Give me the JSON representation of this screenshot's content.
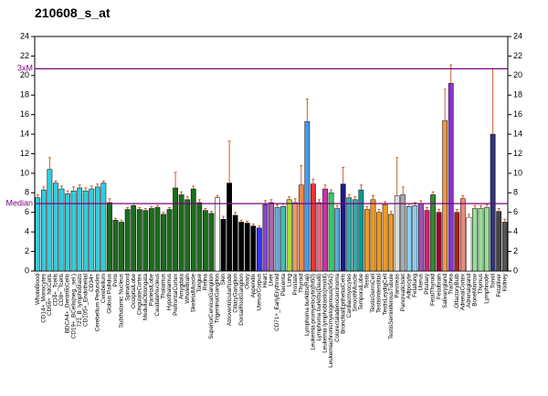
{
  "chart_data": {
    "type": "bar",
    "title": "210608_s_at",
    "categories": [
      "WholeBlood",
      "CD14+_Monocytes",
      "CD56+_NKCells",
      "CD4+_Tcells",
      "CD8+_Tcells",
      "BDCA4+_DentriticCells",
      "CD19+_BCells(neg._sel.)",
      "721_B_lymphoblasts",
      "CD105+_Endothelial",
      "CD34+",
      "Cerebellum Peduncles",
      "Cerebellum",
      "Globus Pallidus",
      "Pons",
      "Subthalamic Nucleus",
      "Spinalcord",
      "OccipitalLobe",
      "CingulateCortex",
      "MedullaOblongata",
      "ParietalLobe",
      "CaudateNucleus",
      "Thalamus",
      "Hypothalamus",
      "PrefrontalCortex",
      "Amygdala",
      "WholeBrain",
      "SkeletalMuscle",
      "Tongue",
      "Retina",
      "SuperiorCervicalGanglion",
      "TrigeminalGanglion",
      "Skin",
      "AtrioventricularNode",
      "CiliaryGanglion",
      "DorsalRootGanglion",
      "Ovary",
      "Appendix",
      "Uterus/Corpus",
      "Heart",
      "Liver",
      "CD71+_EarlyErythroid",
      "Placenta",
      "Lung",
      "Prostate",
      "Thyroid",
      "Lymphoma burkitts(Raji)",
      "Leukemia promyelocytic(hl60)",
      "Lymphoma burkitts(Daudi)",
      "Leukemia lymphoblastic(molt4)",
      "Leukemiachronicmyelogenous(k562)",
      "Colorectaladenocarcinoma",
      "BronchialEpithelialCells",
      "Cardiacmyocytes",
      "SmoothMuscle",
      "TemporalLobe",
      "Testis",
      "TestisGermCell",
      "TestisInterstitial",
      "TestisLeydigCell",
      "TestisSeminiferousTubule",
      "Pancreas",
      "PancreaticIslet",
      "Adipocyte",
      "Fetallung",
      "Uterus",
      "Pituitary",
      "FetalThyroid",
      "Fetalbrain",
      "Salivarygland",
      "Trachea",
      "OlfactoryBulb",
      "AdrenalCortex",
      "Adrenalgland",
      "BoneMarrow",
      "Thymus",
      "Lymphnode",
      "Tonsil",
      "Fetalliver",
      "Kidney"
    ],
    "values": [
      7.5,
      8.3,
      10.4,
      9.0,
      8.4,
      7.9,
      8.2,
      8.5,
      8.2,
      8.4,
      8.6,
      9.0,
      7.0,
      5.2,
      5.0,
      6.3,
      6.7,
      6.3,
      6.2,
      6.4,
      6.5,
      5.8,
      6.3,
      8.5,
      7.8,
      7.3,
      8.4,
      7.0,
      6.2,
      5.9,
      7.5,
      5.3,
      9.0,
      5.7,
      5.0,
      4.9,
      4.6,
      4.4,
      6.8,
      7.0,
      6.5,
      6.6,
      7.3,
      7.0,
      8.8,
      15.3,
      8.9,
      7.0,
      8.4,
      8.0,
      6.4,
      8.9,
      7.5,
      7.3,
      8.3,
      6.3,
      7.3,
      6.0,
      6.8,
      5.8,
      7.7,
      7.8,
      6.6,
      6.7,
      6.9,
      6.2,
      7.8,
      6.0,
      15.4,
      19.2,
      6.0,
      7.4,
      5.5,
      6.4,
      6.4,
      6.5,
      14.0,
      6.1,
      5.0
    ],
    "errors": [
      0.3,
      0.3,
      1.2,
      0.2,
      0.3,
      0.3,
      0.4,
      0.3,
      0.3,
      0.3,
      0.3,
      0.2,
      0.4,
      0.2,
      0.2,
      0.2,
      0.2,
      0.2,
      0.2,
      0.2,
      0.2,
      0.2,
      0.2,
      1.6,
      0.3,
      0.3,
      0.3,
      0.3,
      0.2,
      0.2,
      0.2,
      0.3,
      4.3,
      0.3,
      0.2,
      0.2,
      0.2,
      0.2,
      0.4,
      0.3,
      0.3,
      0.3,
      0.3,
      0.4,
      2.0,
      2.3,
      0.5,
      0.3,
      0.4,
      0.3,
      0.3,
      1.7,
      0.3,
      0.3,
      0.5,
      0.3,
      0.4,
      0.3,
      0.3,
      0.3,
      3.9,
      0.8,
      0.3,
      0.3,
      0.3,
      0.3,
      0.3,
      0.3,
      3.2,
      1.9,
      0.3,
      0.3,
      0.3,
      0.3,
      0.3,
      0.3,
      6.7,
      0.3,
      0.3
    ],
    "colors": [
      "#33ccdd",
      "#33ccdd",
      "#33ccdd",
      "#33ccdd",
      "#33ccdd",
      "#33ccdd",
      "#33ccdd",
      "#33ccdd",
      "#33ccdd",
      "#33ccdd",
      "#33ccdd",
      "#33ccdd",
      "#1a6e1a",
      "#1a6e1a",
      "#1a6e1a",
      "#1a6e1a",
      "#1a6e1a",
      "#1a6e1a",
      "#1a6e1a",
      "#1a6e1a",
      "#1a6e1a",
      "#1a6e1a",
      "#1a6e1a",
      "#1a6e1a",
      "#1a6e1a",
      "#1a6e1a",
      "#1a6e1a",
      "#1a6e1a",
      "#1a6e1a",
      "#1a6e1a",
      "#ffffff",
      "#000000",
      "#000000",
      "#000000",
      "#000000",
      "#000000",
      "#000000",
      "#3333ff",
      "#8844cc",
      "#aa66aa",
      "#66aadd",
      "#44bbbb",
      "#aadd33",
      "#ee9966",
      "#ee8844",
      "#4499ee",
      "#ee3333",
      "#ee6688",
      "#cc33aa",
      "#33cc66",
      "#55aadd",
      "#1a1a88",
      "#33aaaa",
      "#33aaaa",
      "#009999",
      "#ee9922",
      "#ee9922",
      "#ee9922",
      "#ee9922",
      "#ee9922",
      "#dddddd",
      "#aaaaaa",
      "#88ccee",
      "#88ccee",
      "#9955bb",
      "#cc2277",
      "#338833",
      "#990033",
      "#ee9944",
      "#8833cc",
      "#aa2222",
      "#ee8877",
      "#ffffff",
      "#99dd99",
      "#99dd99",
      "#99dd99",
      "#333377",
      "#444444",
      "#555555"
    ],
    "ylim": [
      0,
      24
    ],
    "yticks": [
      0,
      2,
      4,
      6,
      8,
      10,
      12,
      14,
      16,
      18,
      20,
      22,
      24
    ],
    "reference_lines": [
      {
        "label": "Median",
        "value": 6.9
      },
      {
        "label": "3xM",
        "value": 20.7
      }
    ],
    "reference_color": "#800080"
  }
}
